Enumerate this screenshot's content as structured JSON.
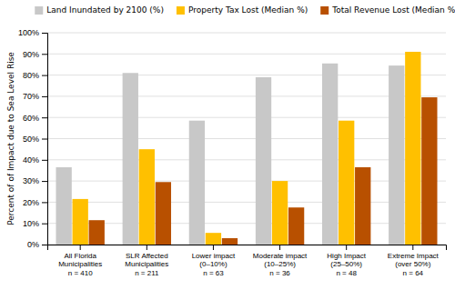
{
  "chart_data": {
    "type": "bar",
    "categories": [
      "All Florida\nMunicipalities\nn = 410",
      "SLR Affected\nMunicipalities\nn = 211",
      "Lower impact\n(0–10%)\nn = 63",
      "Moderate impact\n(10–25%)\nn = 36",
      "High Impact\n(25–50%)\nn = 48",
      "Extreme Impact\n(over 50%)\nn = 64"
    ],
    "series": [
      {
        "name": "Land Inundated by 2100 (%)",
        "color": "#c8c8c8",
        "values": [
          36.5,
          81.0,
          58.5,
          79.0,
          85.5,
          84.5
        ]
      },
      {
        "name": "Property Tax Lost (Median %)",
        "color": "#ffc000",
        "values": [
          21.5,
          45.0,
          5.5,
          30.0,
          58.5,
          91.0
        ]
      },
      {
        "name": "Total Revenue Lost (Median %)",
        "color": "#b85000",
        "values": [
          11.5,
          29.5,
          3.0,
          17.5,
          36.5,
          69.5
        ]
      }
    ],
    "ylabel": "Percent of of Impact due to Sea Level Rise",
    "ylim": [
      0,
      100
    ],
    "yticks": [
      {
        "value": 0,
        "label": "0%"
      },
      {
        "value": 10,
        "label": "10%"
      },
      {
        "value": 20,
        "label": "20%"
      },
      {
        "value": 30,
        "label": "30%"
      },
      {
        "value": 40,
        "label": "40%"
      },
      {
        "value": 50,
        "label": "50%"
      },
      {
        "value": 60,
        "label": "60%"
      },
      {
        "value": 70,
        "label": "70%"
      },
      {
        "value": 80,
        "label": "80%"
      },
      {
        "value": 90,
        "label": "90%"
      },
      {
        "value": 100,
        "label": "100%"
      }
    ],
    "grid": true,
    "legend": "top"
  }
}
